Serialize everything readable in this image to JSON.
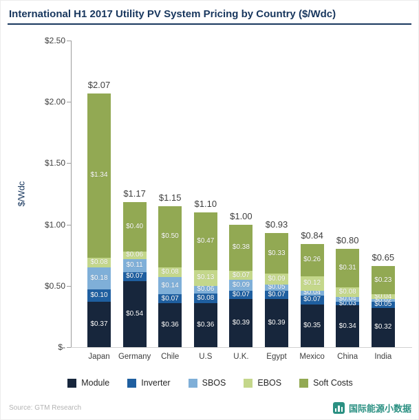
{
  "header": {
    "title": "International H1 2017 Utility PV System Pricing by Country ($/Wdc)"
  },
  "chart_data": {
    "type": "bar",
    "stacked": true,
    "title": "International H1 2017 Utility PV System Pricing by Country ($/Wdc)",
    "ylabel": "$/Wdc",
    "ylim": [
      0,
      2.5
    ],
    "grid": false,
    "legend_position": "bottom",
    "yticks": {
      "labels": [
        "$2.50",
        "$2.00",
        "$1.50",
        "$1.00",
        "$0.50",
        "$-"
      ],
      "values": [
        2.5,
        2.0,
        1.5,
        1.0,
        0.5,
        0
      ]
    },
    "categories": [
      "Japan",
      "Germany",
      "Chile",
      "U.S",
      "U.K.",
      "Egypt",
      "Mexico",
      "China",
      "India"
    ],
    "series": [
      {
        "name": "Module",
        "color": "#17263c",
        "values": [
          0.37,
          0.54,
          0.36,
          0.36,
          0.39,
          0.39,
          0.35,
          0.34,
          0.32
        ]
      },
      {
        "name": "Inverter",
        "color": "#1f5fa0",
        "values": [
          0.1,
          0.07,
          0.07,
          0.08,
          0.07,
          0.07,
          0.07,
          0.03,
          0.05
        ]
      },
      {
        "name": "SBOS",
        "color": "#7fafd8",
        "values": [
          0.18,
          0.11,
          0.14,
          0.06,
          0.09,
          0.05,
          0.04,
          0.04,
          0.02
        ]
      },
      {
        "name": "EBOS",
        "color": "#c4d78b",
        "values": [
          0.08,
          0.06,
          0.08,
          0.13,
          0.07,
          0.09,
          0.12,
          0.08,
          0.04
        ]
      },
      {
        "name": "Soft Costs",
        "color": "#92a953",
        "values": [
          1.34,
          0.4,
          0.5,
          0.47,
          0.38,
          0.33,
          0.26,
          0.31,
          0.23
        ]
      }
    ],
    "totals": [
      "$2.07",
      "$1.17",
      "$1.15",
      "$1.10",
      "$1.00",
      "$0.93",
      "$0.84",
      "$0.80",
      "$0.65"
    ]
  },
  "footer": {
    "source": "Source: GTM Research",
    "watermark_text": "国际能源小数据"
  },
  "colors": {
    "accent": "#17365d",
    "watermark": "#2a9082",
    "axis": "#9c9c9c"
  }
}
